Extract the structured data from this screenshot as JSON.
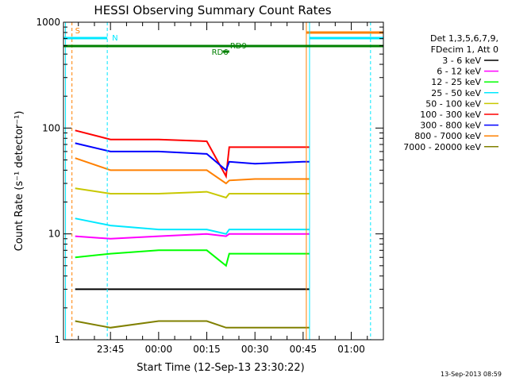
{
  "chart_data": {
    "type": "line",
    "title": "HESSI Observing Summary Count Rates",
    "xlabel": "Start Time (12-Sep-13 23:30:22)",
    "ylabel": "Count Rate (s⁻¹ detector⁻¹)",
    "yscale": "log",
    "ylim": [
      1,
      1000
    ],
    "xlim": [
      "23:30:22",
      "01:10:00"
    ],
    "ytick_labels": [
      "1",
      "10",
      "100",
      "1000"
    ],
    "xtick_labels": [
      "23:45",
      "00:00",
      "00:15",
      "00:30",
      "00:45",
      "01:00"
    ],
    "legend_header": [
      "Det 1,3,5,6,7,9,",
      "FDecim 1, Att 0"
    ],
    "legend_position": "right",
    "timestamp": "13-Sep-2013 08:59",
    "flags": [
      {
        "label": "S",
        "color": "#ff8000"
      },
      {
        "label": "N",
        "color": "#00e8ff"
      },
      {
        "label": "RD9",
        "color": "#008000"
      },
      {
        "label": "RD6",
        "color": "#008000"
      }
    ],
    "series": [
      {
        "name": "3 - 6 keV",
        "color": "#000000",
        "times": [
          "23:34",
          "23:45",
          "00:00",
          "00:15",
          "00:21",
          "00:22",
          "00:30",
          "00:45",
          "00:47"
        ],
        "values": [
          3.0,
          3.0,
          3.0,
          3.0,
          3.0,
          3.0,
          3.0,
          3.0,
          3.0
        ]
      },
      {
        "name": "6 - 12 keV",
        "color": "#ff00ff",
        "times": [
          "23:34",
          "23:45",
          "00:00",
          "00:15",
          "00:21",
          "00:22",
          "00:30",
          "00:45",
          "00:47"
        ],
        "values": [
          9.5,
          9.0,
          9.5,
          10,
          9.5,
          10,
          10,
          10,
          10
        ]
      },
      {
        "name": "12 - 25 keV",
        "color": "#00ff00",
        "times": [
          "23:34",
          "23:45",
          "00:00",
          "00:15",
          "00:21",
          "00:22",
          "00:30",
          "00:45",
          "00:47"
        ],
        "values": [
          6.0,
          6.5,
          7.0,
          7.0,
          5.0,
          6.5,
          6.5,
          6.5,
          6.5
        ]
      },
      {
        "name": "25 - 50 keV",
        "color": "#00e8ff",
        "times": [
          "23:34",
          "23:45",
          "00:00",
          "00:15",
          "00:21",
          "00:22",
          "00:30",
          "00:45",
          "00:47"
        ],
        "values": [
          14,
          12,
          11,
          11,
          10,
          11,
          11,
          11,
          11
        ]
      },
      {
        "name": "50 - 100 keV",
        "color": "#c8c800",
        "times": [
          "23:34",
          "23:45",
          "00:00",
          "00:15",
          "00:21",
          "00:22",
          "00:30",
          "00:45",
          "00:47"
        ],
        "values": [
          27,
          24,
          24,
          25,
          22,
          24,
          24,
          24,
          24
        ]
      },
      {
        "name": "100 - 300 keV",
        "color": "#ff0000",
        "times": [
          "23:34",
          "23:45",
          "00:00",
          "00:15",
          "00:21",
          "00:22",
          "00:30",
          "00:45",
          "00:47"
        ],
        "values": [
          95,
          78,
          78,
          75,
          35,
          66,
          66,
          66,
          66
        ]
      },
      {
        "name": "300 - 800 keV",
        "color": "#0000ff",
        "times": [
          "23:34",
          "23:45",
          "00:00",
          "00:15",
          "00:21",
          "00:22",
          "00:30",
          "00:45",
          "00:47"
        ],
        "values": [
          72,
          60,
          60,
          57,
          40,
          48,
          46,
          48,
          48
        ]
      },
      {
        "name": "800 - 7000 keV",
        "color": "#ff8000",
        "times": [
          "23:34",
          "23:45",
          "00:00",
          "00:15",
          "00:21",
          "00:22",
          "00:30",
          "00:45",
          "00:47"
        ],
        "values": [
          52,
          40,
          40,
          40,
          30,
          32,
          33,
          33,
          33
        ]
      },
      {
        "name": "7000 - 20000 keV",
        "color": "#808000",
        "times": [
          "23:34",
          "23:45",
          "00:00",
          "00:15",
          "00:21",
          "00:22",
          "00:30",
          "00:45",
          "00:47"
        ],
        "values": [
          1.5,
          1.3,
          1.5,
          1.5,
          1.3,
          1.3,
          1.3,
          1.3,
          1.3
        ]
      }
    ]
  }
}
